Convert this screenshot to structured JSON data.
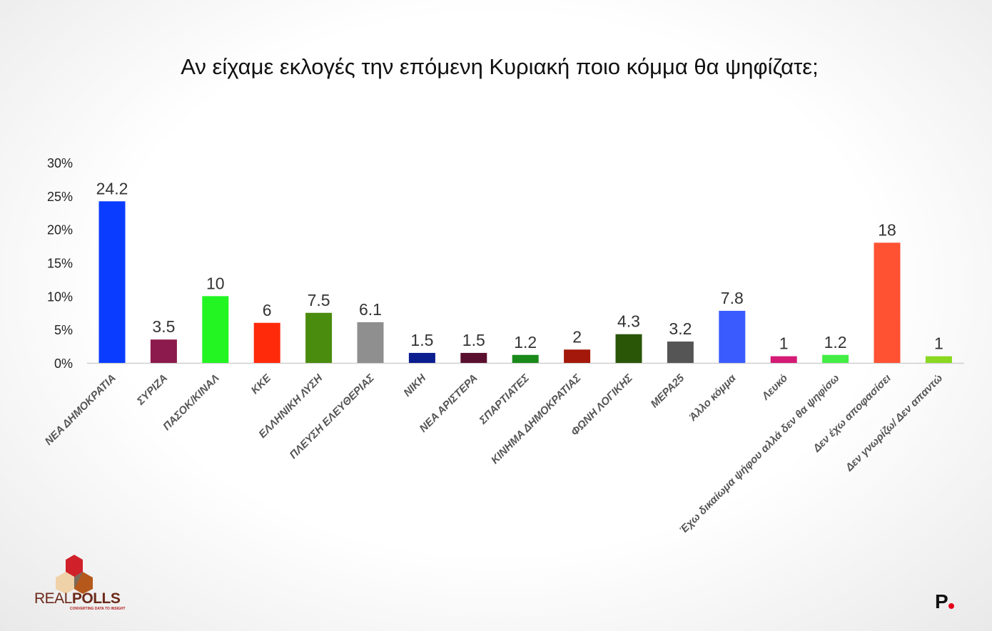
{
  "chart_data": {
    "type": "bar",
    "title": "Αν είχαμε εκλογές την επόμενη Κυριακή ποιο κόμμα θα ψηφίζατε;",
    "xlabel": "",
    "ylabel": "",
    "ylim": [
      0,
      30
    ],
    "yticks": [
      "0%",
      "5%",
      "10%",
      "15%",
      "20%",
      "25%",
      "30%"
    ],
    "grid": false,
    "categories": [
      "ΝΕΑ ΔΗΜΟΚΡΑΤΙΑ",
      "ΣΥΡΙΖΑ",
      "ΠΑΣΟΚ/ΚΙΝΑΛ",
      "ΚΚΕ",
      "ΕΛΛΗΝΙΚΗ ΛΥΣΗ",
      "ΠΛΕΥΣΗ ΕΛΕΥΘΕΡΙΑΣ",
      "ΝΙΚΗ",
      "ΝΕΑ ΑΡΙΣΤΕΡΑ",
      "ΣΠΑΡΤΙΑΤΕΣ",
      "ΚΙΝΗΜΑ ΔΗΜΟΚΡΑΤΙΑΣ",
      "ΦΩΝΗ ΛΟΓΙΚΗΣ",
      "ΜΕΡΑ25",
      "Άλλο κόμμα",
      "Λευκό",
      "Έχω δικαίωμα ψήφου αλλά δεν θα ψηφίσω",
      "Δεν έχω αποφασίσει",
      "Δεν γνωρίζω/ Δεν απαντώ"
    ],
    "values": [
      24.2,
      3.5,
      10,
      6,
      7.5,
      6.1,
      1.5,
      1.5,
      1.2,
      2,
      4.3,
      3.2,
      7.8,
      1,
      1.2,
      18,
      1
    ],
    "labels": [
      "24.2",
      "3.5",
      "10",
      "6",
      "7.5",
      "6.1",
      "1.5",
      "1.5",
      "1.2",
      "2",
      "4.3",
      "3.2",
      "7.8",
      "1",
      "1.2",
      "18",
      "1"
    ],
    "colors": [
      "#0a3cff",
      "#8c1a4c",
      "#22f522",
      "#ff2a0a",
      "#4a8c0e",
      "#8f8f8f",
      "#0b1e8f",
      "#5a0f2e",
      "#1a8a1a",
      "#a3180a",
      "#2a5608",
      "#555555",
      "#3a5cff",
      "#d41a74",
      "#44ee44",
      "#ff5233",
      "#8ad820"
    ]
  },
  "branding": {
    "pollster": "REALPOLLS",
    "pollster_tagline": "CONVERTING DATA TO INSIGHT",
    "publisher_mark": "P"
  }
}
